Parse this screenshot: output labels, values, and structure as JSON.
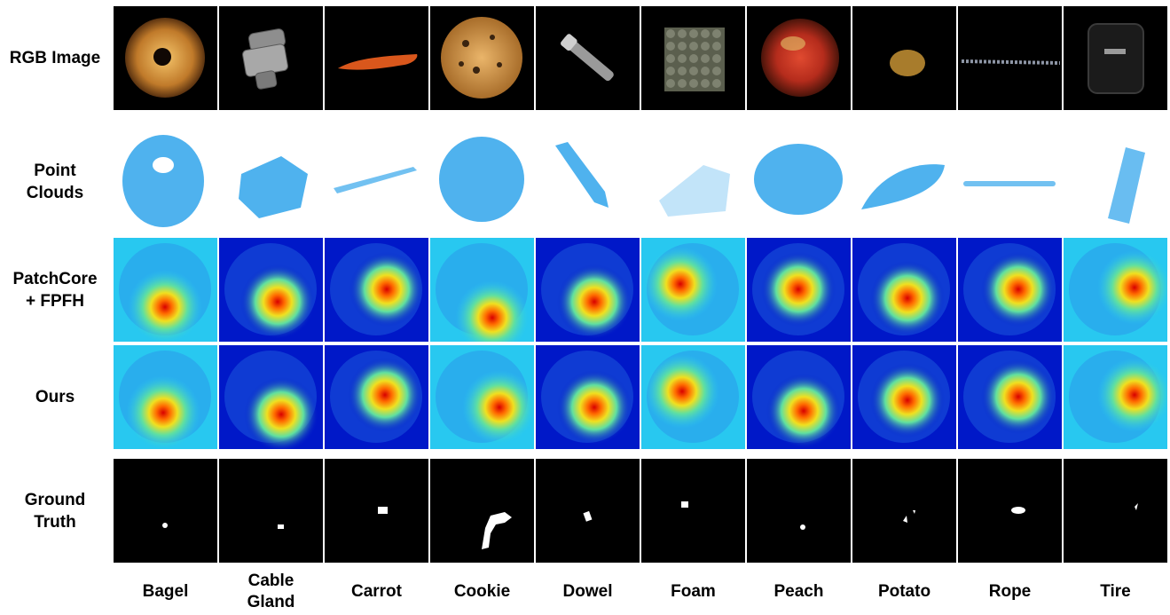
{
  "row_labels": [
    "RGB Image",
    "Point\nClouds",
    "PatchCore\n+ FPFH",
    "Ours",
    "Ground\nTruth"
  ],
  "row_types": [
    "rgb",
    "cloud",
    "heat-a",
    "heat-b",
    "mask"
  ],
  "columns": [
    "Bagel",
    "Cable\nGland",
    "Carrot",
    "Cookie",
    "Dowel",
    "Foam",
    "Peach",
    "Potato",
    "Rope",
    "Tire"
  ],
  "column_objects": [
    "bagel",
    "cable-gland",
    "carrot",
    "cookie",
    "dowel",
    "foam",
    "peach",
    "potato",
    "rope",
    "tire"
  ],
  "colors": {
    "rgb_background": "#000000",
    "point_cloud": "#4fb2ee",
    "heatmap_low": "#0018c8",
    "heatmap_mid": "#28c8f0",
    "heatmap_hot": "#d80000",
    "mask_background": "#000000",
    "mask_foreground": "#ffffff"
  }
}
